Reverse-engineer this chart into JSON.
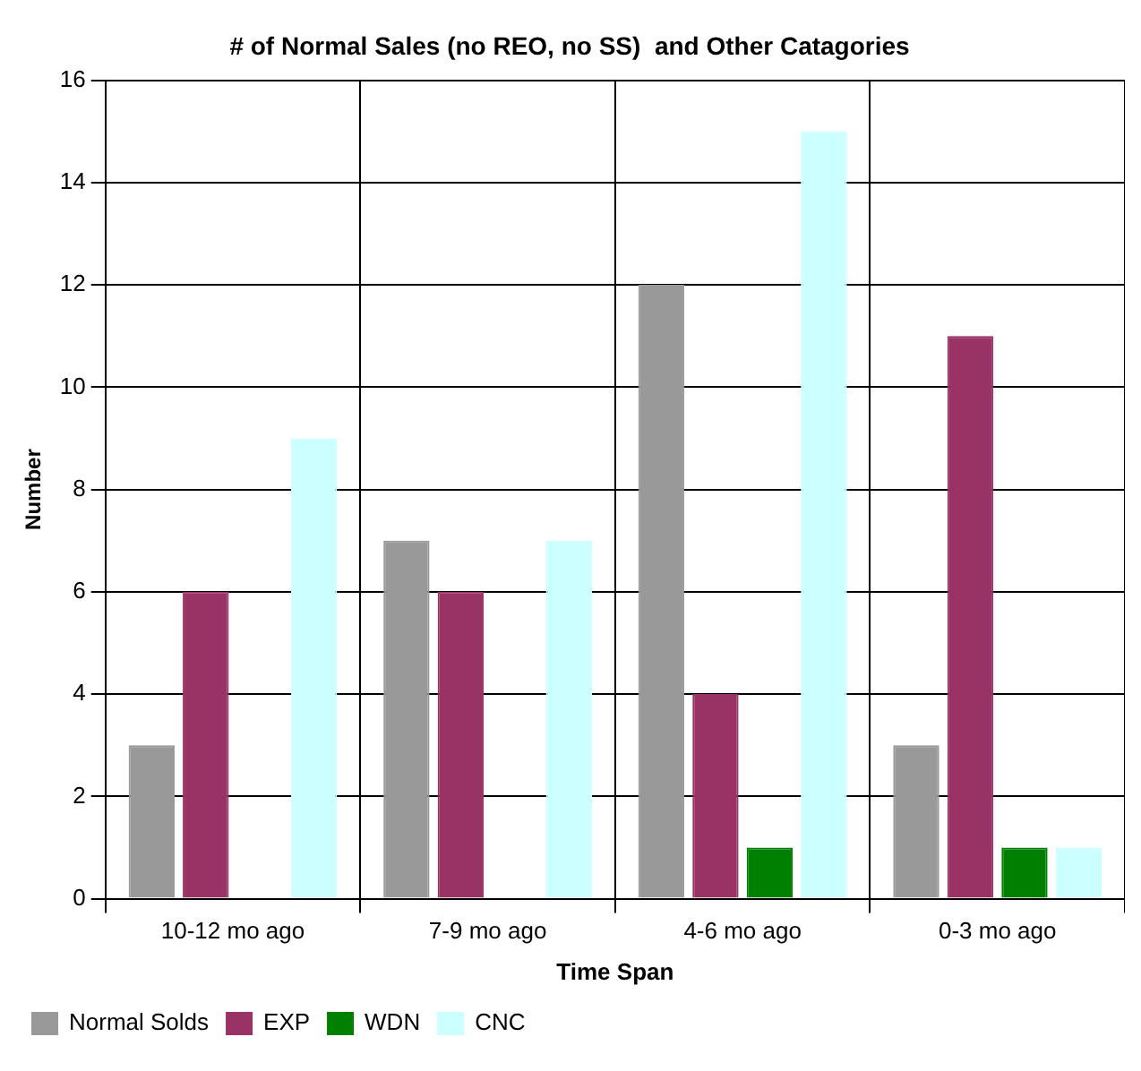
{
  "chart_data": {
    "type": "bar",
    "title": "# of Normal Sales (no REO, no SS)  and Other Catagories",
    "xlabel": "Time Span",
    "ylabel": "Number",
    "categories": [
      "10-12 mo ago",
      "7-9 mo ago",
      "4-6 mo ago",
      "0-3 mo ago"
    ],
    "series": [
      {
        "name": "Normal Solds",
        "color": "#999999",
        "values": [
          3,
          7,
          12,
          3
        ]
      },
      {
        "name": "EXP",
        "color": "#993366",
        "values": [
          6,
          6,
          4,
          11
        ]
      },
      {
        "name": "WDN",
        "color": "#008000",
        "values": [
          0,
          0,
          1,
          1
        ]
      },
      {
        "name": "CNC",
        "color": "#ccffff",
        "values": [
          9,
          7,
          15,
          1
        ]
      }
    ],
    "ylim": [
      0,
      16
    ],
    "yticks": [
      0,
      2,
      4,
      6,
      8,
      10,
      12,
      14,
      16
    ],
    "grid": true,
    "legend": "bottom left"
  }
}
